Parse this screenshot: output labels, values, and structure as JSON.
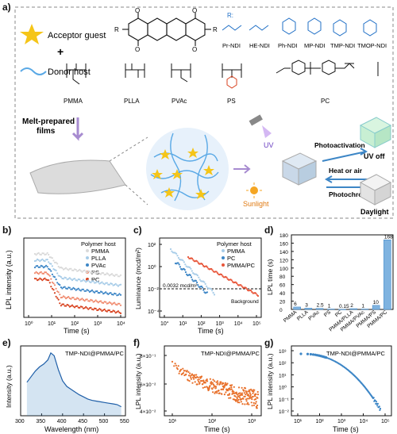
{
  "panels": {
    "a": "a)",
    "b": "b)",
    "c": "c)",
    "d": "d)",
    "e": "e)",
    "f": "f)",
    "g": "g)"
  },
  "panel_a": {
    "acceptor_label": "Acceptor guest",
    "plus": "+",
    "donor_label": "Donor host",
    "r_label": "R:",
    "r_groups": [
      "Pr-NDI",
      "HE-NDI",
      "Ph-NDI",
      "MP-NDI",
      "TMP-NDI",
      "TMOP-NDI"
    ],
    "polymers": [
      "PMMA",
      "PLLA",
      "PVAc",
      "PS",
      "PC"
    ],
    "melt_label": [
      "Melt-prepared",
      "films"
    ],
    "uv_label": "UV",
    "sunlight_label": "Sunlight",
    "photoactivation_label": "Photoactivation",
    "heat_label": "Heat or air",
    "photochromic_label": "Photochromic",
    "uv_off_label": "UV off",
    "daylight_label": "Daylight",
    "colors": {
      "accent": "#f5c518",
      "donor": "#5aa9e6",
      "box_border": "#888888"
    }
  },
  "chart_data": [
    {
      "id": "b",
      "type": "scatter",
      "ylabel": "LPL intensity (a.u.)",
      "xlabel": "Time (s)",
      "x_ticks": [
        "10⁰",
        "10¹",
        "10²",
        "10³",
        "10⁴"
      ],
      "xscale": "log",
      "xlim": [
        1,
        10000
      ],
      "legend_title": "Polymer host",
      "legend_position": "top-right",
      "series": [
        {
          "name": "PMMA",
          "color": "#d9d9d9"
        },
        {
          "name": "PLLA",
          "color": "#a7cce8"
        },
        {
          "name": "PVAc",
          "color": "#3d86c6"
        },
        {
          "name": "PS",
          "color": "#f08a6e"
        },
        {
          "name": "PC",
          "color": "#d8421f"
        }
      ]
    },
    {
      "id": "c",
      "type": "scatter",
      "ylabel": "Luminance (mcd/m²)",
      "xlabel": "Time (s)",
      "y_ticks": [
        "10²",
        "10⁰",
        "10⁻²",
        "10⁻⁴"
      ],
      "x_ticks": [
        "10°",
        "10¹",
        "10²",
        "10³",
        "10⁴",
        "10⁵"
      ],
      "xscale": "log",
      "yscale": "log",
      "legend_title": "Polymer host",
      "legend_position": "top-right",
      "threshold_label": "0.0032 mcd/m²",
      "background_label": "Background",
      "series": [
        {
          "name": "PMMA",
          "color": "#a7cce8"
        },
        {
          "name": "PC",
          "color": "#3d86c6"
        },
        {
          "name": "PMMA/PC",
          "color": "#e8563a"
        }
      ]
    },
    {
      "id": "d",
      "type": "bar",
      "ylabel": "LPL time (s)",
      "categories": [
        "PMMA",
        "PLLA",
        "PVAc",
        "PS",
        "PC",
        "PMMA/PLLA",
        "PMMA/PVAc",
        "PMMA/PS",
        "PMMA/PC"
      ],
      "values": [
        6,
        3,
        2.5,
        1,
        0.15,
        2,
        1,
        10,
        168
      ],
      "value_labels": [
        "6",
        "3",
        "2.5",
        "1",
        "0.15",
        "2",
        "1",
        "10",
        "168"
      ],
      "ylim": [
        0,
        180
      ],
      "y_ticks": [
        "0",
        "20",
        "40",
        "60",
        "80",
        "100",
        "120",
        "140",
        "160",
        "180"
      ],
      "color": "#7fb3e0"
    },
    {
      "id": "e",
      "type": "area",
      "title": "TMP-NDI@PMMA/PC",
      "ylabel": "Intensity (a.u.)",
      "xlabel": "Wavelength (nm)",
      "x_ticks": [
        "300",
        "350",
        "400",
        "450",
        "500",
        "550"
      ],
      "xlim": [
        300,
        550
      ],
      "x": [
        315,
        325,
        335,
        345,
        355,
        365,
        372,
        380,
        390,
        400,
        410,
        420,
        430,
        440,
        450,
        460,
        470,
        480,
        490,
        500,
        510,
        520,
        530,
        540
      ],
      "values": [
        0.48,
        0.56,
        0.64,
        0.7,
        0.74,
        0.8,
        0.9,
        0.86,
        0.66,
        0.5,
        0.42,
        0.38,
        0.34,
        0.3,
        0.27,
        0.24,
        0.22,
        0.21,
        0.2,
        0.19,
        0.18,
        0.17,
        0.16,
        0.13
      ],
      "color": "#3d86c6"
    },
    {
      "id": "f",
      "type": "scatter",
      "title": "TMP-NDI@PMMA/PC",
      "ylabel": "LPL intensity (a.u.)",
      "xlabel": "Time (s)",
      "y_ticks": [
        "8×10⁻¹",
        "6×10⁻²",
        "4×10⁻²"
      ],
      "x_ticks": [
        "10¹",
        "10²",
        "10³"
      ],
      "xscale": "log",
      "color": "#e8702a"
    },
    {
      "id": "g",
      "type": "scatter",
      "title": "TMP-NDI@PMMA/PC",
      "ylabel": "LPL intensity (a.u.)",
      "xlabel": "Time (s)",
      "y_ticks": [
        "10³",
        "10²",
        "10¹",
        "10⁰",
        "10⁻¹",
        "10⁻²"
      ],
      "x_ticks": [
        "10¹",
        "10²",
        "10³",
        "10⁴",
        "10⁵"
      ],
      "xscale": "log",
      "yscale": "log",
      "color": "#3d86c6"
    }
  ]
}
